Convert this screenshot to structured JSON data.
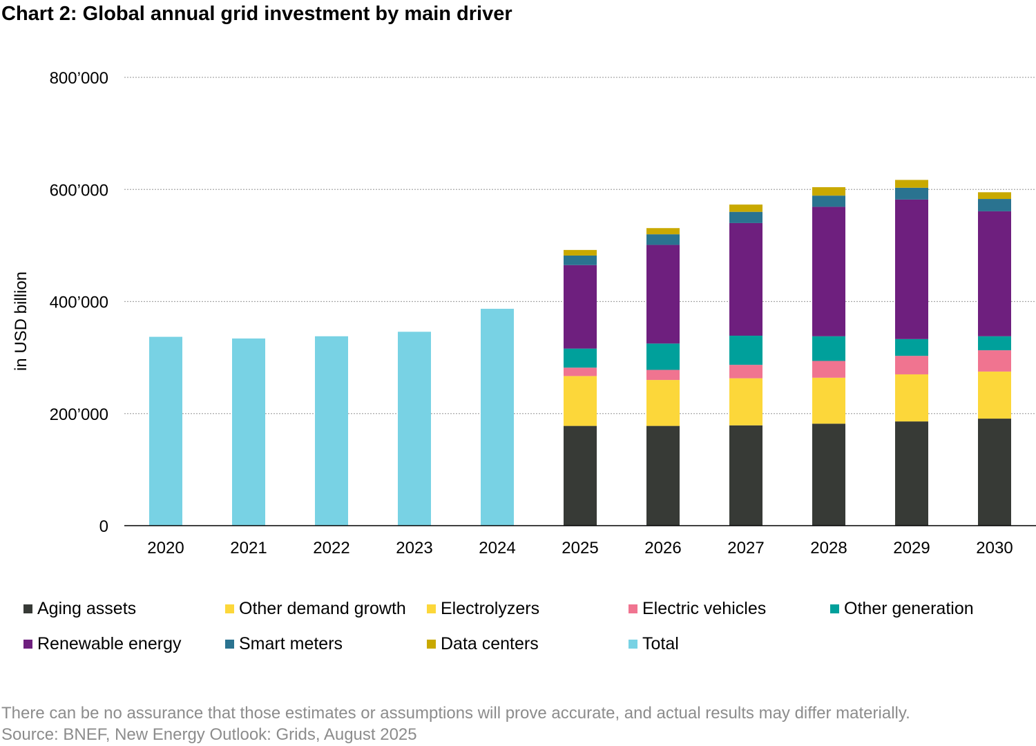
{
  "title": "Chart 2: Global annual grid investment by main driver",
  "chart_data": {
    "type": "bar",
    "stacked": true,
    "title": "Chart 2: Global annual grid investment by main driver",
    "ylabel": "in USD billion",
    "xlabel": "",
    "ylim": [
      0,
      800000
    ],
    "yticks": [
      0,
      200000,
      400000,
      600000,
      800000
    ],
    "ytick_labels": [
      "0",
      "200’000",
      "400’000",
      "600’000",
      "800’000"
    ],
    "grid": true,
    "legend_position": "bottom",
    "categories": [
      "2020",
      "2021",
      "2022",
      "2023",
      "2024",
      "2025",
      "2026",
      "2027",
      "2028",
      "2029",
      "2030"
    ],
    "series": [
      {
        "name": "Aging assets",
        "color": "#373a36",
        "values": [
          null,
          null,
          null,
          null,
          null,
          178000,
          178000,
          179000,
          182000,
          186000,
          191000
        ]
      },
      {
        "name": "Other demand growth",
        "color": "#fcd73a",
        "values": [
          null,
          null,
          null,
          null,
          null,
          89000,
          82000,
          84000,
          82000,
          84000,
          84000
        ]
      },
      {
        "name": "Electrolyzers",
        "color": "#fcd73a",
        "values": [
          null,
          null,
          null,
          null,
          null,
          0,
          0,
          0,
          0,
          0,
          0
        ]
      },
      {
        "name": "Electric vehicles",
        "color": "#f07490",
        "values": [
          null,
          null,
          null,
          null,
          null,
          15000,
          18000,
          24000,
          30000,
          33000,
          38000
        ]
      },
      {
        "name": "Other generation",
        "color": "#00a09b",
        "values": [
          null,
          null,
          null,
          null,
          null,
          34000,
          47000,
          52000,
          44000,
          30000,
          25000
        ]
      },
      {
        "name": "Renewable energy",
        "color": "#6e1f7e",
        "values": [
          null,
          null,
          null,
          null,
          null,
          149000,
          176000,
          201000,
          231000,
          249000,
          223000
        ]
      },
      {
        "name": "Smart meters",
        "color": "#2a7390",
        "values": [
          null,
          null,
          null,
          null,
          null,
          17000,
          19000,
          20000,
          20000,
          21000,
          22000
        ]
      },
      {
        "name": "Data centers",
        "color": "#c9a900",
        "values": [
          null,
          null,
          null,
          null,
          null,
          10000,
          11000,
          13000,
          15000,
          14000,
          12000
        ]
      },
      {
        "name": "Total",
        "color": "#78d2e4",
        "values": [
          337000,
          334000,
          338000,
          346000,
          387000,
          null,
          null,
          null,
          null,
          null,
          null
        ]
      }
    ]
  },
  "footnotes": {
    "disclaimer": "There can be no assurance that those estimates or assumptions will prove accurate, and actual results may differ materially.",
    "source": "Source: BNEF, New Energy Outlook: Grids, August 2025"
  }
}
